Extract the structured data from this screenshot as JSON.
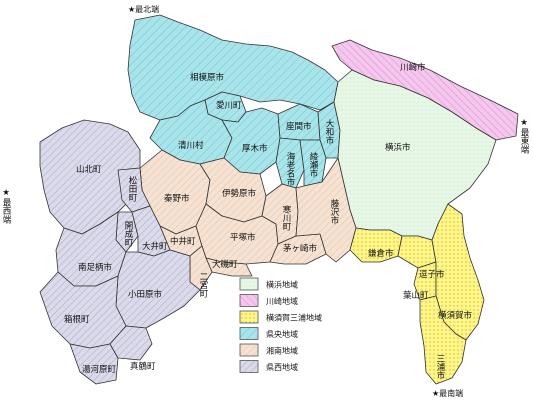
{
  "compass": {
    "north": "★最北端",
    "east": "★最東端",
    "west": "★最西端",
    "south": "★最南端"
  },
  "colors": {
    "yokohama": "#e6f7e6",
    "kawasaki": "#f5c6ee",
    "yokosuka_miura": "#fff68a",
    "kenou": "#a9e4ea",
    "shonan": "#f6e2d2",
    "kensei": "#dadaea"
  },
  "regions": {
    "yokohama": {
      "label": "横浜市"
    },
    "kawasaki": {
      "label": "川崎市"
    },
    "sagamihara": {
      "label": "相模原市"
    },
    "aikawa": {
      "label": "愛川町"
    },
    "kiyokawa": {
      "label": "清川村"
    },
    "atsugi": {
      "label": "厚木市"
    },
    "zama": {
      "label": "座間市"
    },
    "yamato": {
      "label": "大和市"
    },
    "ebina": {
      "label": "海老名市"
    },
    "ayase": {
      "label": "綾瀬市"
    },
    "yamakita": {
      "label": "山北町"
    },
    "matsuda": {
      "label": "松田町"
    },
    "hadano": {
      "label": "秦野市"
    },
    "isehara": {
      "label": "伊勢原市"
    },
    "samukawa": {
      "label": "寒川町"
    },
    "fujisawa": {
      "label": "藤沢市"
    },
    "kaisei": {
      "label": "開成町"
    },
    "oi": {
      "label": "大井町"
    },
    "nakai": {
      "label": "中井町"
    },
    "hiratsuka": {
      "label": "平塚市"
    },
    "chigasaki": {
      "label": "茅ヶ崎市"
    },
    "kamakura": {
      "label": "鎌倉市"
    },
    "zushi": {
      "label": "逗子市"
    },
    "hayama": {
      "label": "葉山町"
    },
    "yokosuka": {
      "label": "横須賀市"
    },
    "miura": {
      "label": "三浦市"
    },
    "minamiashigara": {
      "label": "南足柄市"
    },
    "odawara": {
      "label": "小田原市"
    },
    "oiso": {
      "label": "大磯町"
    },
    "ninomiya": {
      "label": "二宮町"
    },
    "hakone": {
      "label": "箱根町"
    },
    "yugawara": {
      "label": "湯河原町"
    },
    "manazuru": {
      "label": "真鶴町"
    }
  },
  "legend": [
    {
      "label": "横浜地域",
      "key": "yokohama"
    },
    {
      "label": "川崎地域",
      "key": "kawasaki"
    },
    {
      "label": "横須賀三浦地域",
      "key": "yokosuka_miura"
    },
    {
      "label": "県央地域",
      "key": "kenou"
    },
    {
      "label": "湘南地域",
      "key": "shonan"
    },
    {
      "label": "県西地域",
      "key": "kensei"
    }
  ]
}
